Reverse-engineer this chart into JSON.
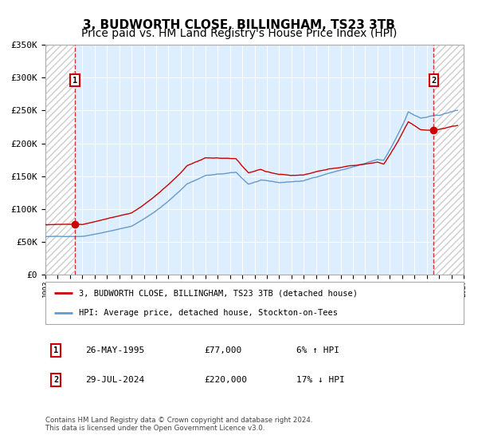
{
  "title": "3, BUDWORTH CLOSE, BILLINGHAM, TS23 3TB",
  "subtitle": "Price paid vs. HM Land Registry's House Price Index (HPI)",
  "legend_line1": "3, BUDWORTH CLOSE, BILLINGHAM, TS23 3TB (detached house)",
  "legend_line2": "HPI: Average price, detached house, Stockton-on-Tees",
  "annotation1_date": "26-MAY-1995",
  "annotation1_price": "£77,000",
  "annotation1_hpi": "6% ↑ HPI",
  "annotation2_date": "29-JUL-2024",
  "annotation2_price": "£220,000",
  "annotation2_hpi": "17% ↓ HPI",
  "footer": "Contains HM Land Registry data © Crown copyright and database right 2024.\nThis data is licensed under the Open Government Licence v3.0.",
  "sale1_year": 1995.4,
  "sale1_value": 77000,
  "sale2_year": 2024.57,
  "sale2_value": 220000,
  "xmin": 1993,
  "xmax": 2027,
  "ymin": 0,
  "ymax": 350000,
  "hatch_color": "#cc0000",
  "line_red": "#cc0000",
  "line_blue": "#6699cc",
  "bg_plot": "#ddeeff",
  "grid_color": "#ffffff",
  "title_fontsize": 11,
  "subtitle_fontsize": 10
}
